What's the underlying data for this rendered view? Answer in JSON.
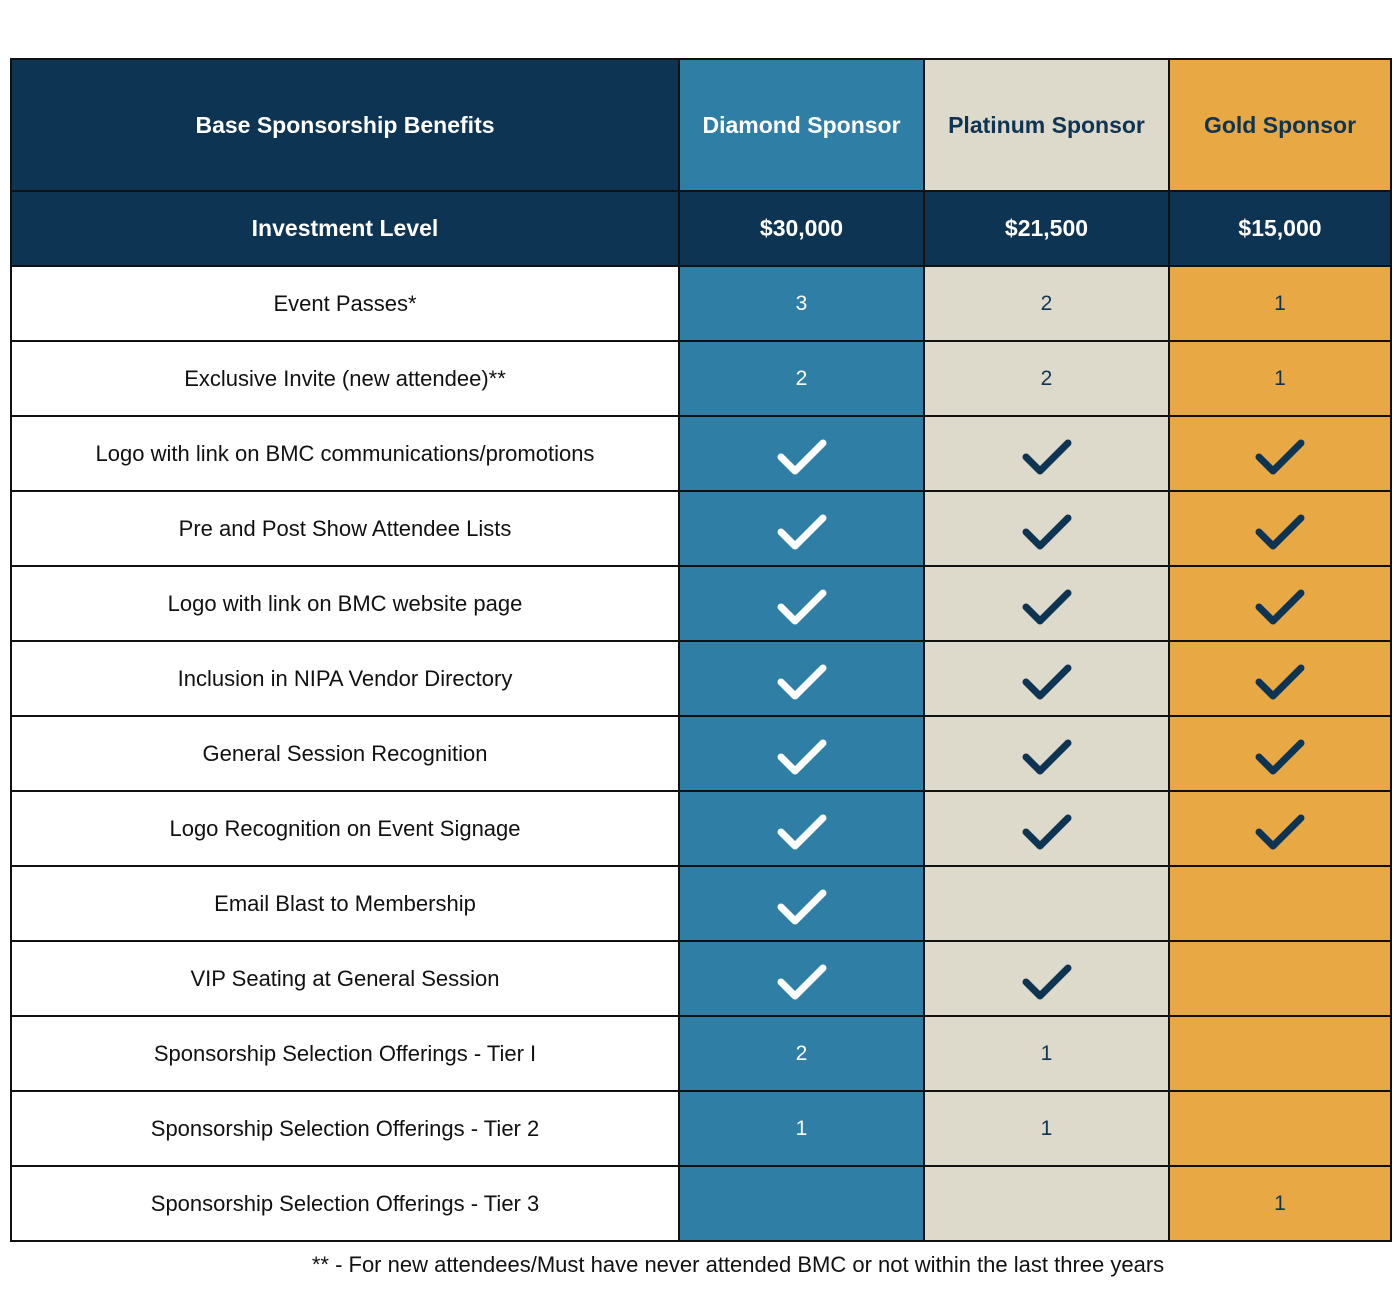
{
  "columns": {
    "benefit": "Base Sponsorship Benefits",
    "diamond": "Diamond Sponsor",
    "platinum": "Platinum Sponsor",
    "gold": "Gold Sponsor"
  },
  "investment": {
    "label": "Investment Level",
    "diamond": "$30,000",
    "platinum": "$21,500",
    "gold": "$15,000"
  },
  "rows": [
    {
      "benefit": "Event Passes*",
      "diamond": "3",
      "platinum": "2",
      "gold": "1"
    },
    {
      "benefit": "Exclusive Invite (new attendee)**",
      "diamond": "2",
      "platinum": "2",
      "gold": "1"
    },
    {
      "benefit": "Logo with link on BMC communications/promotions",
      "diamond": "check",
      "platinum": "check",
      "gold": "check"
    },
    {
      "benefit": "Pre and Post Show Attendee Lists",
      "diamond": "check",
      "platinum": "check",
      "gold": "check"
    },
    {
      "benefit": "Logo with link on BMC website page",
      "diamond": "check",
      "platinum": "check",
      "gold": "check"
    },
    {
      "benefit": "Inclusion in NIPA Vendor Directory",
      "diamond": "check",
      "platinum": "check",
      "gold": "check"
    },
    {
      "benefit": "General Session Recognition",
      "diamond": "check",
      "platinum": "check",
      "gold": "check"
    },
    {
      "benefit": "Logo Recognition on Event Signage",
      "diamond": "check",
      "platinum": "check",
      "gold": "check"
    },
    {
      "benefit": "Email Blast to Membership",
      "diamond": "check",
      "platinum": "",
      "gold": ""
    },
    {
      "benefit": "VIP Seating at General Session",
      "diamond": "check",
      "platinum": "check",
      "gold": ""
    },
    {
      "benefit": "Sponsorship Selection Offerings - Tier I",
      "diamond": "2",
      "platinum": "1",
      "gold": ""
    },
    {
      "benefit": "Sponsorship Selection Offerings - Tier 2",
      "diamond": "1",
      "platinum": "1",
      "gold": ""
    },
    {
      "benefit": "Sponsorship Selection Offerings - Tier 3",
      "diamond": "",
      "platinum": "",
      "gold": "1"
    }
  ],
  "footnote": "** - For new attendees/Must have never attended BMC or not within the last three years",
  "colors": {
    "navy": "#0e3454",
    "diamond": "#2e7ea5",
    "platinum": "#dedacb",
    "gold": "#e8a944",
    "check_on_diamond": "#ffffff",
    "check_on_light": "#0e3454"
  },
  "icons": {
    "included": "checkmark-icon"
  }
}
